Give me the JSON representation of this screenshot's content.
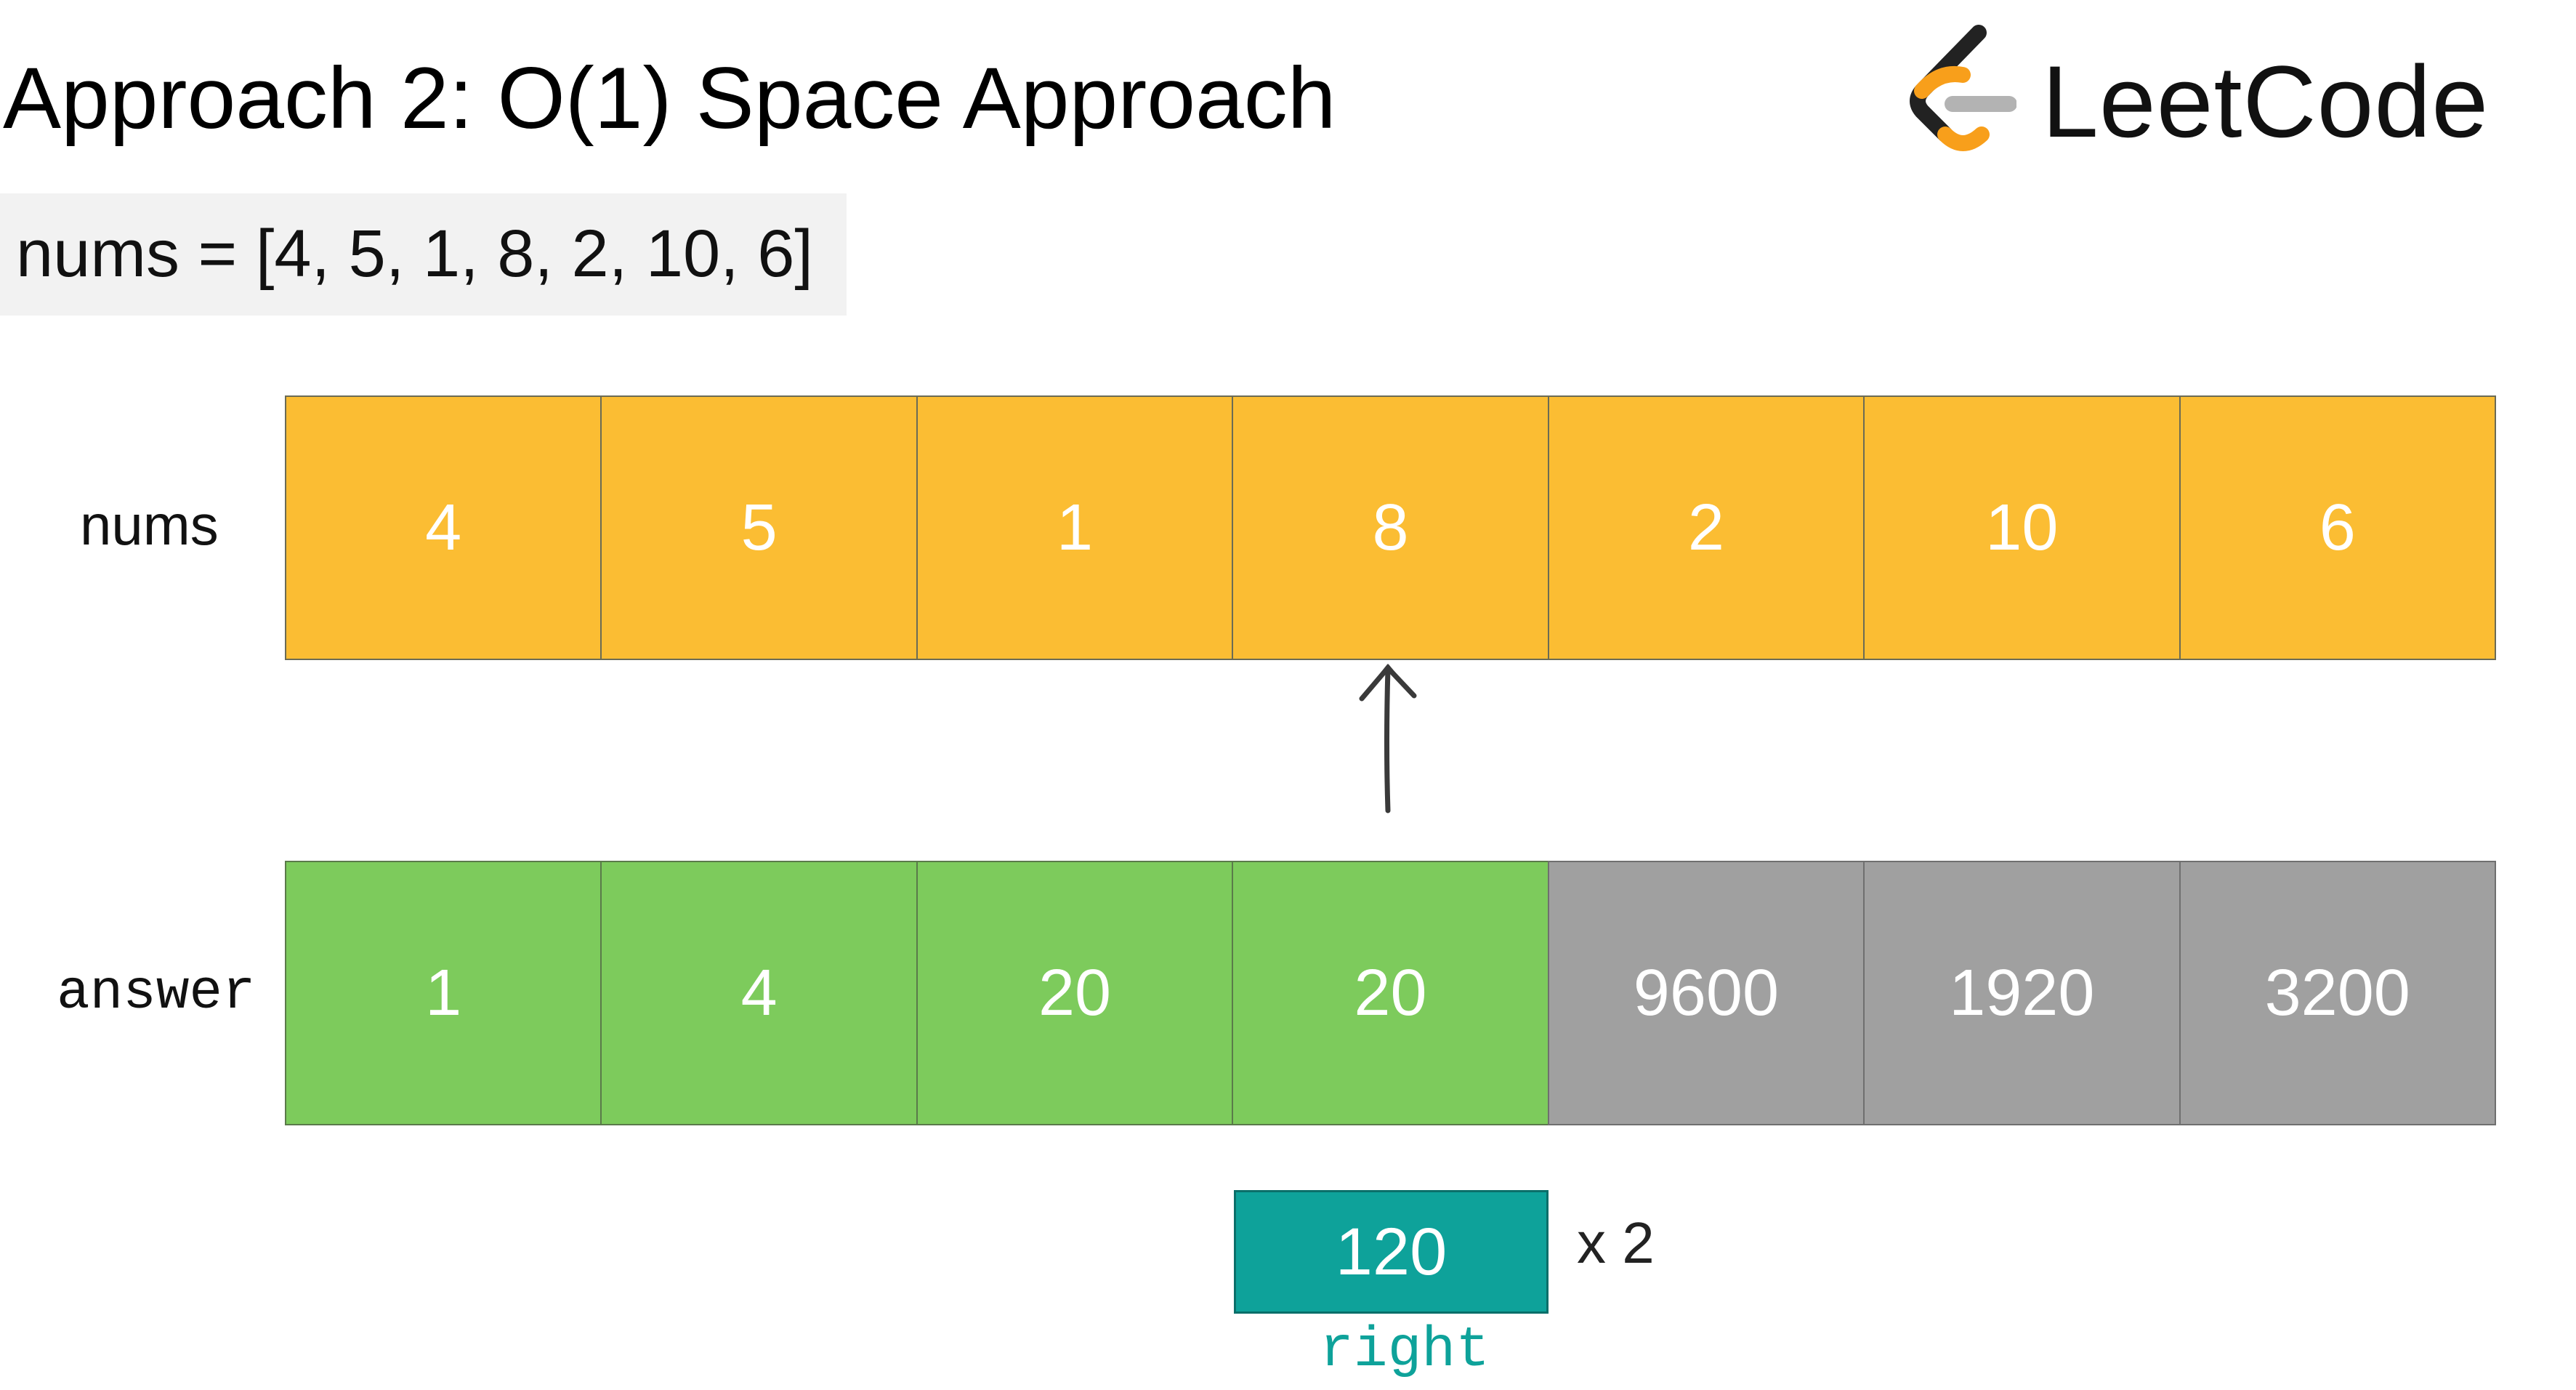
{
  "title": "Approach 2: O(1) Space Approach",
  "logo": {
    "text": "LeetCode",
    "icon": "leetcode-logo-icon",
    "colors": {
      "dark": "#222222",
      "accent": "#f89f1b",
      "mid": "#b3b3b3"
    }
  },
  "nums_display": "nums = [4, 5, 1, 8, 2, 10, 6]",
  "labels": {
    "nums": "nums",
    "answer": "answer",
    "right": "right",
    "multiplier": "x 2"
  },
  "nums_array": [
    "4",
    "5",
    "1",
    "8",
    "2",
    "10",
    "6"
  ],
  "answer_array": [
    "1",
    "4",
    "20",
    "20",
    "9600",
    "1920",
    "3200"
  ],
  "answer_states": [
    "done",
    "done",
    "done",
    "done",
    "pending",
    "pending",
    "pending"
  ],
  "pointer_index": 3,
  "right_value": "120",
  "colors": {
    "nums_cell": "#fbbd33",
    "answer_done": "#7dcb5c",
    "answer_pending": "#a0a0a0",
    "right_box": "#0ea29a"
  }
}
